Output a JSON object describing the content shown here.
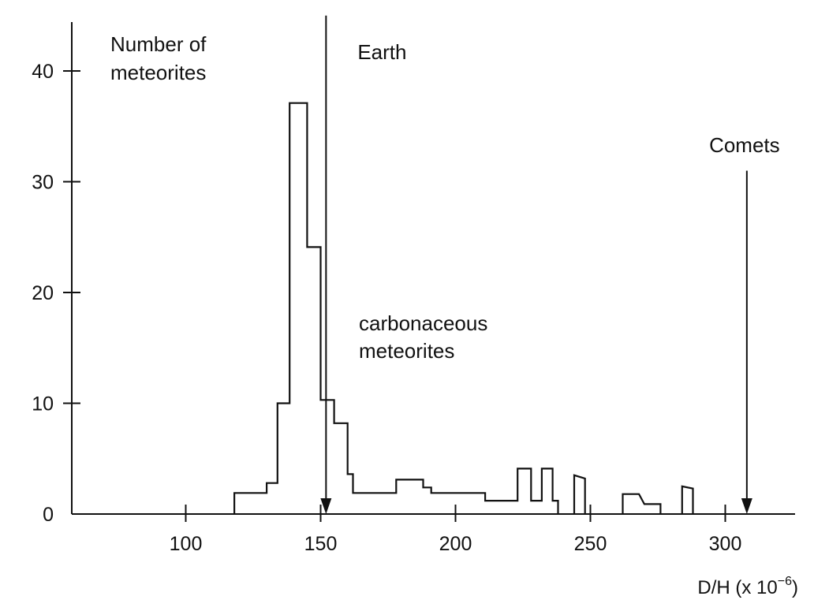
{
  "chart_data": {
    "type": "histogram",
    "ylabel_lines": [
      "Number of",
      "meteorites"
    ],
    "xlabel": {
      "base": "D/H (x 10",
      "exponent": "−6",
      "close": ")"
    },
    "xlim": [
      58,
      327
    ],
    "ylim": [
      0,
      44
    ],
    "x_ticks": [
      100,
      150,
      200,
      250,
      300
    ],
    "y_ticks": [
      0,
      10,
      20,
      30,
      40
    ],
    "series": [
      {
        "label_lines": [
          "carbonaceous",
          "meteorites"
        ],
        "segments": [
          [
            [
              118,
              0
            ],
            [
              118,
              1.9
            ],
            [
              130,
              1.9
            ],
            [
              130,
              2.8
            ],
            [
              134,
              2.8
            ],
            [
              134,
              10.0
            ],
            [
              138.5,
              10.0
            ],
            [
              138.5,
              37.1
            ],
            [
              145,
              37.1
            ],
            [
              145,
              24.1
            ],
            [
              150,
              24.1
            ],
            [
              150,
              10.3
            ],
            [
              155,
              10.3
            ],
            [
              155,
              8.2
            ],
            [
              160,
              8.2
            ],
            [
              160,
              3.6
            ],
            [
              162,
              3.6
            ],
            [
              162,
              1.9
            ],
            [
              178,
              1.9
            ],
            [
              178,
              3.1
            ],
            [
              188,
              3.1
            ],
            [
              188,
              2.4
            ],
            [
              191,
              2.4
            ],
            [
              191,
              1.9
            ],
            [
              211,
              1.9
            ],
            [
              211,
              1.2
            ],
            [
              223,
              1.2
            ],
            [
              223,
              4.1
            ],
            [
              228,
              4.1
            ],
            [
              228,
              1.2
            ],
            [
              232,
              1.2
            ],
            [
              232,
              4.1
            ],
            [
              236,
              4.1
            ],
            [
              236,
              1.2
            ],
            [
              238,
              1.2
            ],
            [
              238,
              0
            ]
          ],
          [
            [
              244,
              0
            ],
            [
              244,
              3.5
            ],
            [
              248,
              3.2
            ],
            [
              248,
              0
            ]
          ],
          [
            [
              262,
              0
            ],
            [
              262,
              1.8
            ],
            [
              268,
              1.8
            ],
            [
              270,
              0.9
            ],
            [
              276,
              0.9
            ],
            [
              276,
              0
            ]
          ],
          [
            [
              284,
              0
            ],
            [
              284,
              2.5
            ],
            [
              288,
              2.3
            ],
            [
              288,
              0
            ]
          ]
        ]
      }
    ],
    "annotations": [
      {
        "label": "Earth",
        "x": 152,
        "arrow_top": 45
      },
      {
        "label": "Comets",
        "x": 308,
        "arrow_top": 31
      }
    ],
    "grid": false,
    "legend": "none"
  }
}
